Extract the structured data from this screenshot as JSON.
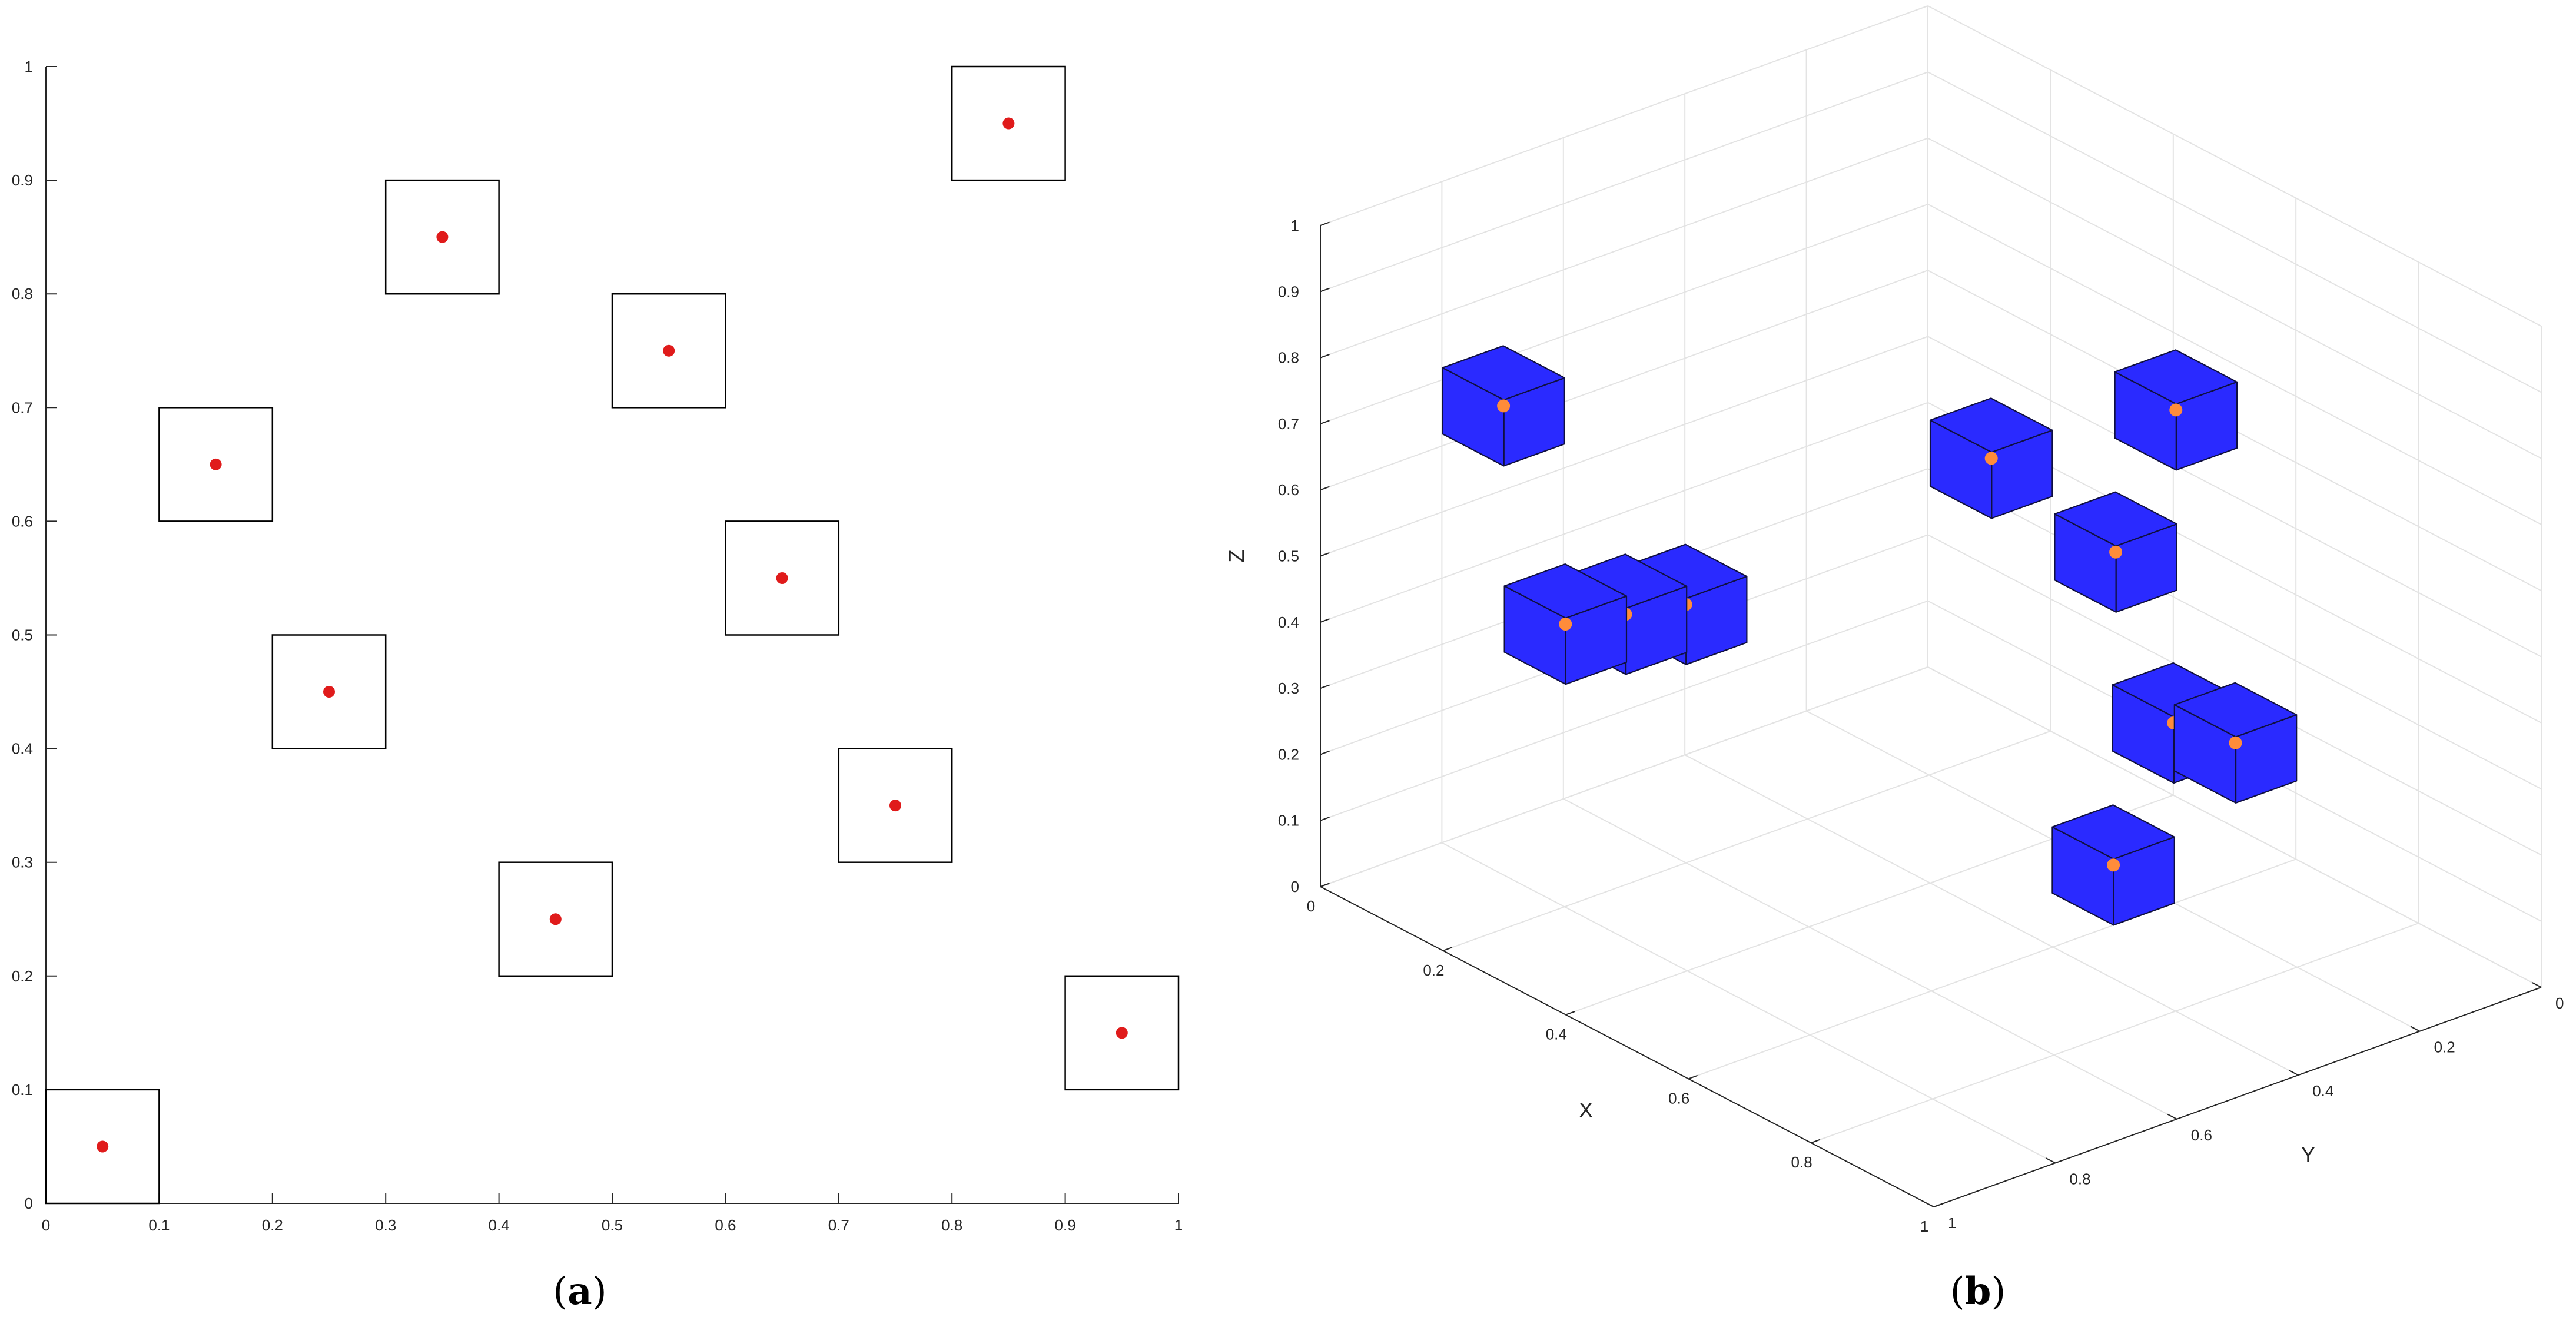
{
  "chart_data": [
    {
      "type": "scatter",
      "caption_letter": "a",
      "xlim": [
        0,
        1
      ],
      "ylim": [
        0,
        1
      ],
      "xticks": [
        "0",
        "0.1",
        "0.2",
        "0.3",
        "0.4",
        "0.5",
        "0.6",
        "0.7",
        "0.8",
        "0.9",
        "1"
      ],
      "yticks": [
        "0",
        "0.1",
        "0.2",
        "0.3",
        "0.4",
        "0.5",
        "0.6",
        "0.7",
        "0.8",
        "0.9",
        "1"
      ],
      "grid": false,
      "box_size": 0.1,
      "point_color": "#e01b1b",
      "box_color": "#000000",
      "points": [
        {
          "x": 0.05,
          "y": 0.05
        },
        {
          "x": 0.15,
          "y": 0.65
        },
        {
          "x": 0.25,
          "y": 0.45
        },
        {
          "x": 0.35,
          "y": 0.85
        },
        {
          "x": 0.45,
          "y": 0.25
        },
        {
          "x": 0.55,
          "y": 0.75
        },
        {
          "x": 0.65,
          "y": 0.55
        },
        {
          "x": 0.75,
          "y": 0.35
        },
        {
          "x": 0.85,
          "y": 0.95
        },
        {
          "x": 0.95,
          "y": 0.15
        }
      ]
    },
    {
      "type": "scatter3d",
      "caption_letter": "b",
      "xlabel": "X",
      "ylabel": "Y",
      "zlabel": "Z",
      "xlim": [
        0,
        1
      ],
      "ylim": [
        0,
        1
      ],
      "zlim": [
        0,
        1
      ],
      "xticks": [
        "0",
        "0.2",
        "0.4",
        "0.6",
        "0.8",
        "1"
      ],
      "yticks": [
        "0",
        "0.2",
        "0.4",
        "0.6",
        "0.8",
        "1"
      ],
      "zticks": [
        "0",
        "0.1",
        "0.2",
        "0.3",
        "0.4",
        "0.5",
        "0.6",
        "0.7",
        "0.8",
        "0.9",
        "1"
      ],
      "grid": true,
      "cube_size": 0.1,
      "cube_color": "#2a2aff",
      "point_color": "#ff8c3a",
      "points": [
        {
          "x": 0.15,
          "y": 0.55,
          "z": 0.35
        },
        {
          "x": 0.15,
          "y": 0.85,
          "z": 0.75
        },
        {
          "x": 0.25,
          "y": 0.75,
          "z": 0.45
        },
        {
          "x": 0.35,
          "y": 0.95,
          "z": 0.55
        },
        {
          "x": 0.45,
          "y": 0.05,
          "z": 0.15
        },
        {
          "x": 0.45,
          "y": 0.35,
          "z": 0.65
        },
        {
          "x": 0.55,
          "y": 0.25,
          "z": 0.05
        },
        {
          "x": 0.65,
          "y": 0.15,
          "z": 0.25
        },
        {
          "x": 0.85,
          "y": 0.45,
          "z": 0.95
        },
        {
          "x": 0.95,
          "y": 0.65,
          "z": 0.85
        }
      ]
    }
  ]
}
